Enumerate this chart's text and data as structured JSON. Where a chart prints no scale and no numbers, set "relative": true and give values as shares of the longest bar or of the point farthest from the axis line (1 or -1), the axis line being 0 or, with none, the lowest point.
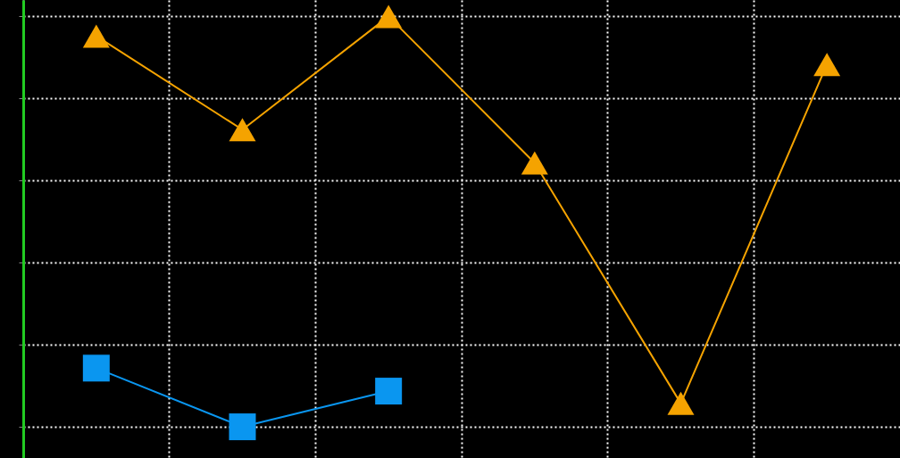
{
  "chart_data": {
    "type": "line",
    "relative": true,
    "categories": [
      null,
      null,
      null,
      null,
      null,
      null
    ],
    "grid": true,
    "series": [
      {
        "color": "#f5a300",
        "marker": "triangle",
        "values": [
          0.952,
          0.724,
          1,
          0.643,
          0.057,
          0.883
        ]
      },
      {
        "color": "#0a96f0",
        "marker": "square",
        "values": [
          0.143,
          0,
          0.087,
          null,
          null,
          null
        ]
      }
    ]
  }
}
